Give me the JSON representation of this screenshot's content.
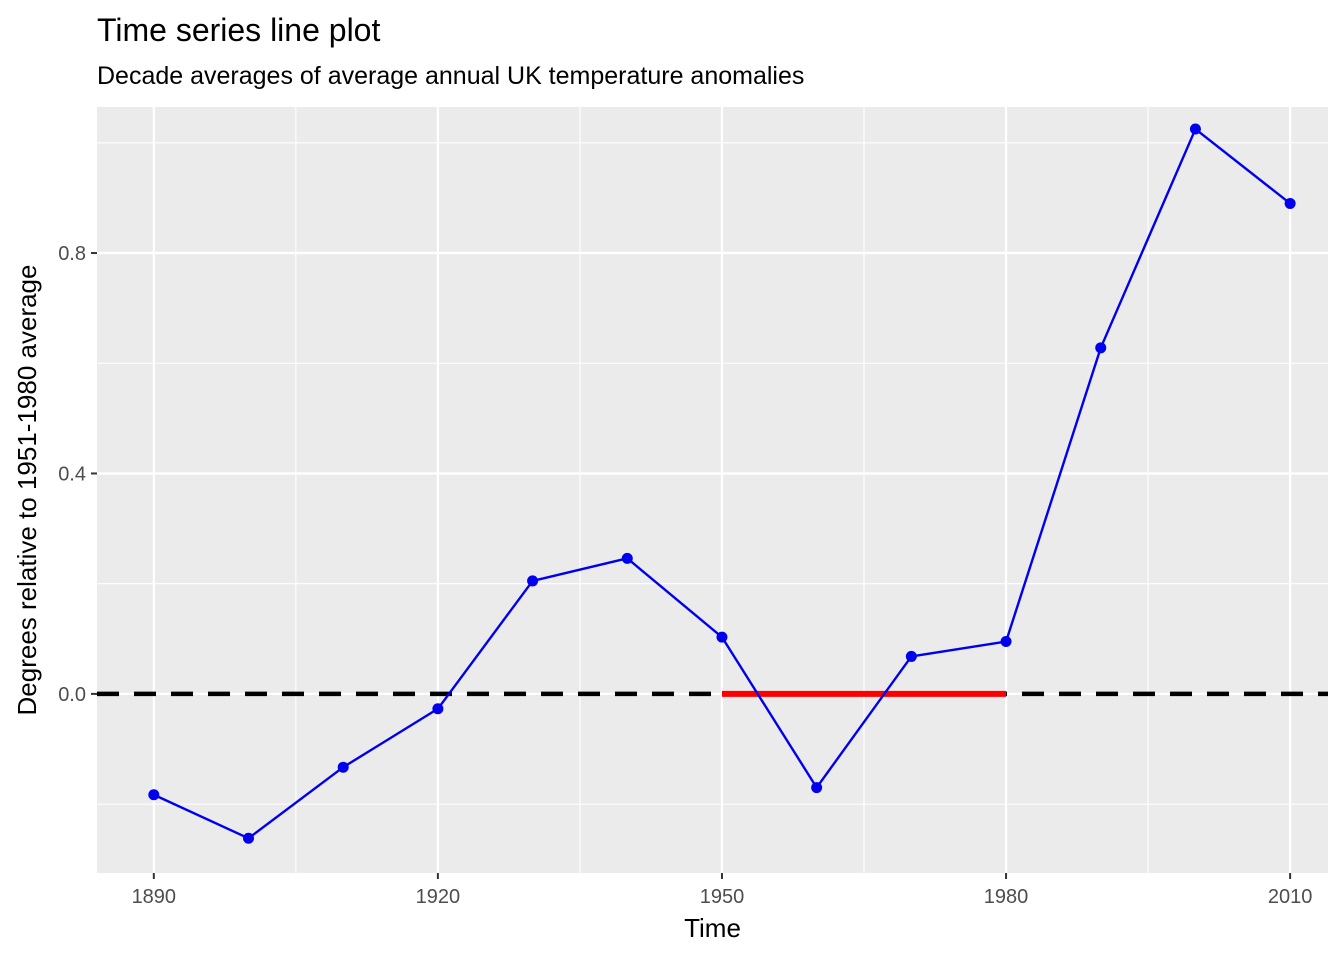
{
  "chart_data": {
    "type": "line",
    "title": "Time series line plot",
    "subtitle": "Decade averages of average annual UK temperature anomalies",
    "xlabel": "Time",
    "ylabel": "Degrees relative to 1951-1980 average",
    "xlim": [
      1884,
      2014
    ],
    "ylim": [
      -0.325,
      1.065
    ],
    "x_ticks": [
      1890,
      1920,
      1950,
      1980,
      2010
    ],
    "y_ticks": [
      0.0,
      0.4,
      0.8
    ],
    "y_tick_labels": [
      "0.0",
      "0.4",
      "0.8"
    ],
    "grid": true,
    "series": [
      {
        "x": [
          1890,
          1900,
          1910,
          1920,
          1930,
          1940,
          1950,
          1960,
          1970,
          1980,
          1990,
          2000,
          2010
        ],
        "y": [
          -0.183,
          -0.262,
          -0.133,
          -0.027,
          0.205,
          0.246,
          0.103,
          -0.17,
          0.068,
          0.095,
          0.628,
          1.025,
          0.89
        ],
        "color": "#0000ee"
      }
    ],
    "reference_line": {
      "y": 0.0,
      "style": "dashed",
      "color": "#000000"
    },
    "baseline_segment": {
      "x": [
        1950,
        1980
      ],
      "y": 0.0,
      "color": "#ff0000"
    },
    "colors": {
      "panel": "#ebebeb",
      "grid": "#ffffff"
    }
  }
}
